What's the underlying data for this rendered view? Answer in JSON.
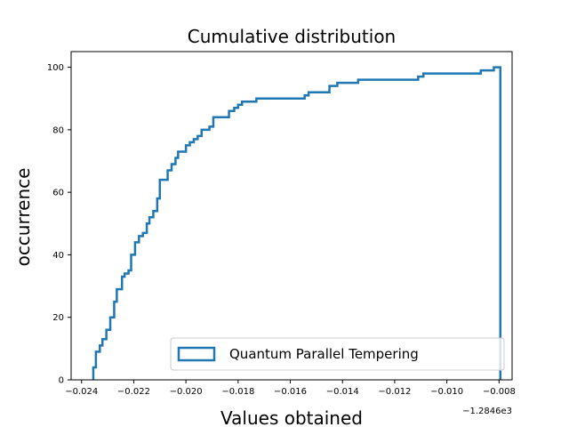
{
  "chart_data": {
    "type": "step",
    "title": "Cumulative distribution",
    "xlabel": "Values obtained",
    "ylabel": "occurrence",
    "x_offset_text": "−1.2846e3",
    "xlim": [
      -0.0244,
      -0.0075
    ],
    "ylim": [
      0,
      105
    ],
    "x_ticks": [
      {
        "value": -0.024,
        "label": "−0.024"
      },
      {
        "value": -0.022,
        "label": "−0.022"
      },
      {
        "value": -0.02,
        "label": "−0.020"
      },
      {
        "value": -0.018,
        "label": "−0.018"
      },
      {
        "value": -0.016,
        "label": "−0.016"
      },
      {
        "value": -0.014,
        "label": "−0.014"
      },
      {
        "value": -0.012,
        "label": "−0.012"
      },
      {
        "value": -0.01,
        "label": "−0.010"
      },
      {
        "value": -0.008,
        "label": "−0.008"
      }
    ],
    "y_ticks": [
      {
        "value": 0,
        "label": "0"
      },
      {
        "value": 20,
        "label": "20"
      },
      {
        "value": 40,
        "label": "40"
      },
      {
        "value": 60,
        "label": "60"
      },
      {
        "value": 80,
        "label": "80"
      },
      {
        "value": 100,
        "label": "100"
      }
    ],
    "legend": {
      "placement": "lower-right",
      "entry": "Quantum Parallel Tempering"
    },
    "series": [
      {
        "name": "Quantum Parallel Tempering",
        "color": "#1f77b4",
        "points": [
          [
            -0.02355,
            0
          ],
          [
            -0.02355,
            4
          ],
          [
            -0.02345,
            4
          ],
          [
            -0.02345,
            9
          ],
          [
            -0.0233,
            9
          ],
          [
            -0.0233,
            11
          ],
          [
            -0.0232,
            11
          ],
          [
            -0.0232,
            13
          ],
          [
            -0.02305,
            13
          ],
          [
            -0.02305,
            16
          ],
          [
            -0.0229,
            16
          ],
          [
            -0.0229,
            20
          ],
          [
            -0.02275,
            20
          ],
          [
            -0.02275,
            25
          ],
          [
            -0.02265,
            25
          ],
          [
            -0.02265,
            29
          ],
          [
            -0.02245,
            29
          ],
          [
            -0.02245,
            33
          ],
          [
            -0.02235,
            33
          ],
          [
            -0.02235,
            34
          ],
          [
            -0.0222,
            34
          ],
          [
            -0.0222,
            35
          ],
          [
            -0.0221,
            35
          ],
          [
            -0.0221,
            40
          ],
          [
            -0.02195,
            40
          ],
          [
            -0.02195,
            44
          ],
          [
            -0.0218,
            44
          ],
          [
            -0.0218,
            46
          ],
          [
            -0.02165,
            46
          ],
          [
            -0.02165,
            47
          ],
          [
            -0.0215,
            47
          ],
          [
            -0.0215,
            50
          ],
          [
            -0.0214,
            50
          ],
          [
            -0.0214,
            52
          ],
          [
            -0.02125,
            52
          ],
          [
            -0.02125,
            54
          ],
          [
            -0.0211,
            54
          ],
          [
            -0.0211,
            58
          ],
          [
            -0.021,
            58
          ],
          [
            -0.021,
            64
          ],
          [
            -0.0207,
            64
          ],
          [
            -0.0207,
            67
          ],
          [
            -0.02055,
            67
          ],
          [
            -0.02055,
            69
          ],
          [
            -0.0204,
            69
          ],
          [
            -0.0204,
            71
          ],
          [
            -0.0203,
            71
          ],
          [
            -0.0203,
            73
          ],
          [
            -0.02,
            73
          ],
          [
            -0.02,
            75
          ],
          [
            -0.01985,
            75
          ],
          [
            -0.01985,
            76
          ],
          [
            -0.0197,
            76
          ],
          [
            -0.0197,
            77
          ],
          [
            -0.01955,
            77
          ],
          [
            -0.01955,
            78
          ],
          [
            -0.0194,
            78
          ],
          [
            -0.0194,
            80
          ],
          [
            -0.0191,
            80
          ],
          [
            -0.0191,
            81
          ],
          [
            -0.01895,
            81
          ],
          [
            -0.01895,
            84
          ],
          [
            -0.01835,
            84
          ],
          [
            -0.01835,
            86
          ],
          [
            -0.01815,
            86
          ],
          [
            -0.01815,
            87
          ],
          [
            -0.018,
            87
          ],
          [
            -0.018,
            88
          ],
          [
            -0.01785,
            88
          ],
          [
            -0.01785,
            89
          ],
          [
            -0.0173,
            89
          ],
          [
            -0.0173,
            90
          ],
          [
            -0.01545,
            90
          ],
          [
            -0.01545,
            91
          ],
          [
            -0.0153,
            91
          ],
          [
            -0.0153,
            92
          ],
          [
            -0.0145,
            92
          ],
          [
            -0.0145,
            94
          ],
          [
            -0.0142,
            94
          ],
          [
            -0.0142,
            95
          ],
          [
            -0.0134,
            95
          ],
          [
            -0.0134,
            96
          ],
          [
            -0.0111,
            96
          ],
          [
            -0.0111,
            97
          ],
          [
            -0.0109,
            97
          ],
          [
            -0.0109,
            98
          ],
          [
            -0.0087,
            98
          ],
          [
            -0.0087,
            99
          ],
          [
            -0.0082,
            99
          ],
          [
            -0.0082,
            100
          ],
          [
            -0.00795,
            100
          ],
          [
            -0.00795,
            0
          ]
        ]
      }
    ]
  }
}
